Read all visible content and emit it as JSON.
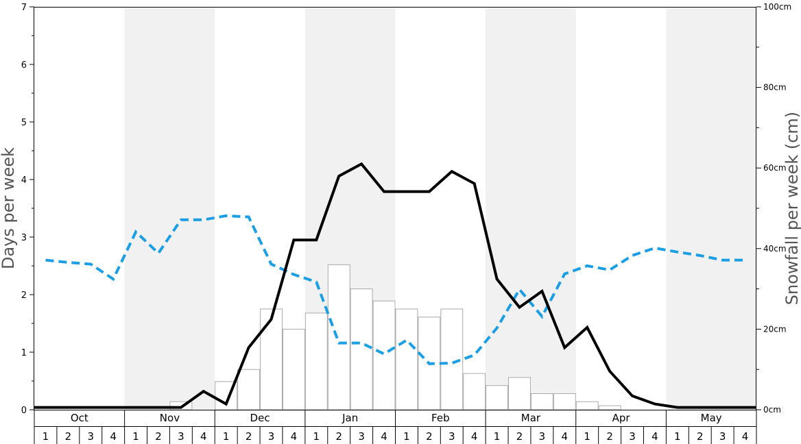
{
  "chart_data": {
    "type": "bar+line",
    "months": [
      "Oct",
      "Nov",
      "Dec",
      "Jan",
      "Feb",
      "Mar",
      "Apr",
      "May"
    ],
    "week_labels": [
      "1",
      "2",
      "3",
      "4"
    ],
    "ylabel_left": "Days per week",
    "ylabel_right": "Snowfall per week (cm)",
    "ylim_left": [
      0,
      7
    ],
    "ylim_right": [
      0,
      100
    ],
    "left_ticks": [
      "0",
      "1",
      "2",
      "3",
      "4",
      "5",
      "6",
      "7"
    ],
    "right_ticks": [
      "0cm",
      "20cm",
      "40cm",
      "60cm",
      "80cm",
      "100cm"
    ],
    "snowfall_cm": [
      0,
      0,
      0,
      0,
      0,
      0,
      2,
      0,
      7,
      10,
      25,
      20,
      24,
      36,
      30,
      27,
      25,
      23,
      25,
      9,
      6,
      8,
      4,
      4,
      2,
      1,
      0,
      0,
      0,
      0,
      0,
      0
    ],
    "days_black": [
      0.04,
      0.04,
      0.04,
      0.04,
      0.04,
      0.04,
      0.04,
      0.32,
      0.1,
      1.08,
      1.57,
      2.95,
      2.95,
      4.06,
      4.27,
      3.79,
      3.79,
      3.79,
      4.14,
      3.93,
      2.27,
      1.78,
      2.06,
      1.08,
      1.43,
      0.67,
      0.24,
      0.1,
      0.04,
      0.04,
      0.04,
      0.04
    ],
    "days_blue": [
      2.6,
      2.56,
      2.53,
      2.27,
      3.09,
      2.72,
      3.3,
      3.3,
      3.37,
      3.35,
      2.53,
      2.35,
      2.22,
      1.16,
      1.16,
      0.97,
      1.21,
      0.8,
      0.81,
      0.95,
      1.42,
      2.09,
      1.62,
      2.36,
      2.5,
      2.43,
      2.68,
      2.81,
      2.74,
      2.68,
      2.6,
      2.6
    ],
    "colors": {
      "black_line": "#000000",
      "blue_line": "#1b9ee3",
      "bar_fill": "#ffffff",
      "bar_stroke": "#aaaaaa",
      "band_shade": "#f1f1f1"
    }
  }
}
